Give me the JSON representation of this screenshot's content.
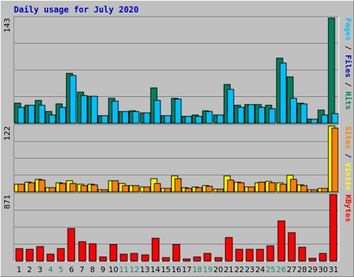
{
  "chart_data": {
    "type": "bar",
    "title": "Daily usage for July 2020",
    "colors": {
      "hits": "#00805c",
      "files": "#00c0ff",
      "pages": "#00c0ff",
      "visits": "#ffff00",
      "sites": "#ff8000",
      "kbytes": "#ff0000",
      "weekend_label": "#208060",
      "weekday_label": "#000000",
      "separator": "#000000"
    },
    "categories": [
      "1",
      "2",
      "3",
      "4",
      "5",
      "6",
      "7",
      "8",
      "9",
      "10",
      "11",
      "12",
      "13",
      "14",
      "15",
      "16",
      "17",
      "18",
      "19",
      "20",
      "21",
      "22",
      "23",
      "24",
      "25",
      "26",
      "27",
      "28",
      "29",
      "30",
      "31"
    ],
    "weekend_days": [
      "4",
      "5",
      "11",
      "12",
      "18",
      "19",
      "25",
      "26"
    ],
    "panels": [
      {
        "name": "hits-files-pages",
        "ymax_label": "143",
        "ylim": [
          0,
          143
        ],
        "side_label_parts": [
          {
            "text": "Pages",
            "color": "#00c0ff"
          },
          {
            "text": " / ",
            "color": "#000000"
          },
          {
            "text": "Files",
            "color": "#0000c0"
          },
          {
            "text": " / ",
            "color": "#000000"
          },
          {
            "text": "Hits",
            "color": "#00805c"
          }
        ],
        "series": [
          {
            "name": "Hits",
            "color": "#00805c",
            "values": [
              27,
              24,
              31,
              16,
              26,
              68,
              42,
              37,
              10,
              34,
              16,
              17,
              14,
              48,
              10,
              34,
              9,
              11,
              17,
              11,
              53,
              24,
              25,
              25,
              24,
              88,
              63,
              27,
              6,
              18,
              143
            ]
          },
          {
            "name": "Files",
            "color": "#00c0ff",
            "values": [
              22,
              24,
              24,
              11,
              22,
              65,
              38,
              37,
              10,
              30,
              16,
              16,
              14,
              31,
              10,
              33,
              9,
              9,
              16,
              11,
              46,
              22,
              25,
              22,
              20,
              82,
              34,
              26,
              6,
              11,
              13
            ]
          }
        ]
      },
      {
        "name": "visits-sites",
        "ymax_label": "122",
        "ylim": [
          0,
          122
        ],
        "side_label_parts": [
          {
            "text": "Sites",
            "color": "#ff8000"
          },
          {
            "text": " / ",
            "color": "#000000"
          },
          {
            "text": "Visits",
            "color": "#ffff00"
          }
        ],
        "series": [
          {
            "name": "Visits",
            "color": "#ffff00",
            "values": [
              14,
              18,
              23,
              8,
              17,
              21,
              14,
              14,
              4,
              20,
              15,
              11,
              9,
              24,
              7,
              29,
              8,
              9,
              12,
              5,
              29,
              18,
              9,
              17,
              19,
              17,
              31,
              13,
              4,
              7,
              122
            ]
          },
          {
            "name": "Sites",
            "color": "#ff8000",
            "values": [
              14,
              17,
              22,
              8,
              16,
              16,
              12,
              13,
              4,
              20,
              12,
              11,
              9,
              16,
              6,
              25,
              7,
              8,
              10,
              5,
              22,
              17,
              9,
              18,
              17,
              14,
              23,
              11,
              4,
              7,
              118
            ]
          }
        ]
      },
      {
        "name": "kbytes",
        "ymax_label": "871",
        "ylim": [
          0,
          871
        ],
        "side_label_parts": [
          {
            "text": "KBytes",
            "color": "#ff0000"
          }
        ],
        "series": [
          {
            "name": "KBytes",
            "color": "#ff0000",
            "values": [
              165,
              155,
              188,
              90,
              162,
              427,
              252,
              231,
              54,
              217,
              92,
              96,
              85,
              301,
              47,
              217,
              27,
              54,
              103,
              43,
              312,
              155,
              155,
              155,
              200,
              529,
              375,
              178,
              34,
              103,
              871
            ]
          }
        ]
      }
    ]
  }
}
